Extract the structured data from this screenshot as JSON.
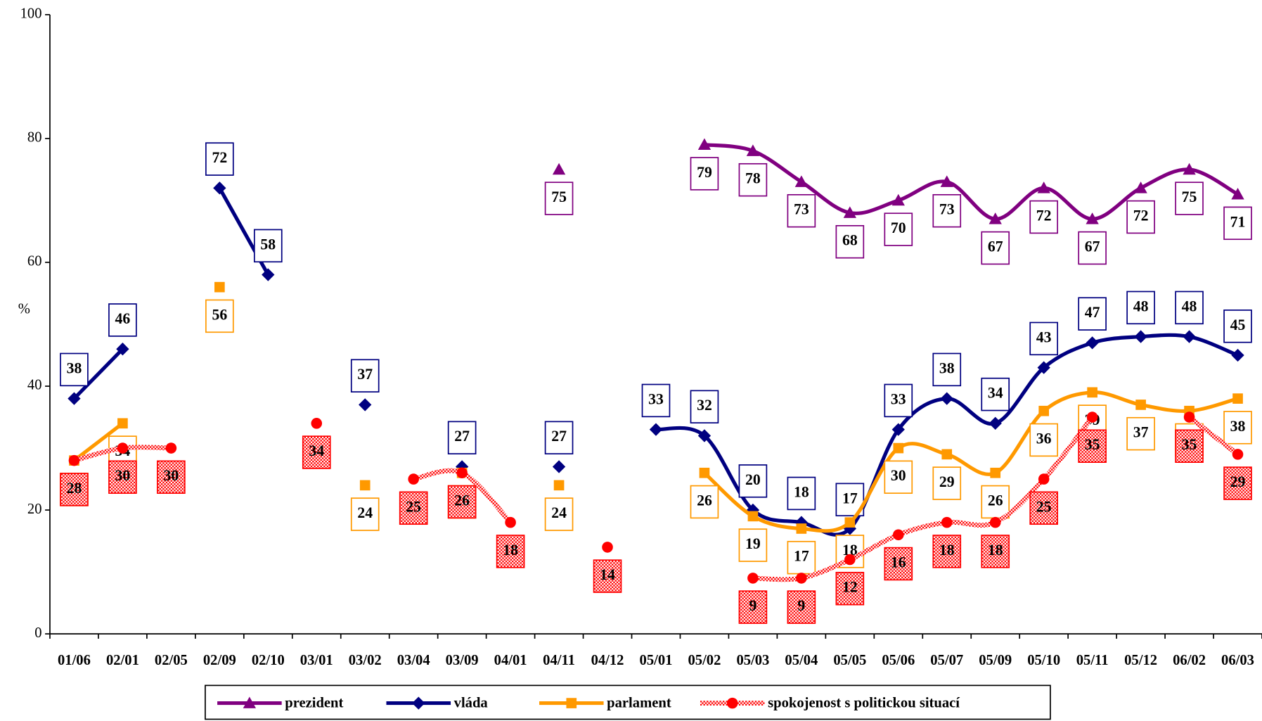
{
  "chart_data": {
    "type": "line",
    "categories": [
      "01/06",
      "02/01",
      "02/05",
      "02/09",
      "02/10",
      "03/01",
      "03/02",
      "03/04",
      "03/09",
      "04/01",
      "04/11",
      "04/12",
      "05/01",
      "05/02",
      "05/03",
      "05/04",
      "05/05",
      "05/06",
      "05/07",
      "05/09",
      "05/10",
      "05/11",
      "05/12",
      "06/02",
      "06/03"
    ],
    "y_label": "%",
    "ylim": [
      0,
      100
    ],
    "yticks": [
      0,
      20,
      40,
      60,
      80,
      100
    ],
    "legend": "bottom",
    "series": [
      {
        "name": "prezident",
        "color": "#800080",
        "marker": "triangle",
        "label_pos": "below",
        "values": [
          null,
          null,
          null,
          null,
          null,
          null,
          null,
          null,
          null,
          null,
          75,
          null,
          null,
          79,
          78,
          73,
          68,
          70,
          73,
          67,
          72,
          67,
          72,
          75,
          71
        ]
      },
      {
        "name": "vláda",
        "color": "#000080",
        "marker": "diamond",
        "label_pos": "above",
        "values": [
          38,
          46,
          null,
          72,
          58,
          null,
          37,
          null,
          27,
          null,
          27,
          null,
          33,
          32,
          20,
          18,
          17,
          33,
          38,
          34,
          43,
          47,
          48,
          48,
          45
        ]
      },
      {
        "name": "parlament",
        "color": "#ff9900",
        "marker": "square",
        "label_pos": "below",
        "values": [
          28,
          34,
          null,
          56,
          null,
          null,
          24,
          null,
          26,
          null,
          24,
          null,
          null,
          26,
          19,
          17,
          18,
          30,
          29,
          26,
          36,
          39,
          37,
          36,
          38
        ]
      },
      {
        "name": "spokojenost s politickou situací",
        "color": "#ff0000",
        "marker": "circle",
        "label_pos": "below",
        "values": [
          28,
          30,
          30,
          null,
          null,
          34,
          null,
          25,
          26,
          18,
          null,
          14,
          null,
          null,
          9,
          9,
          12,
          16,
          18,
          18,
          25,
          35,
          null,
          35,
          29
        ]
      }
    ]
  }
}
